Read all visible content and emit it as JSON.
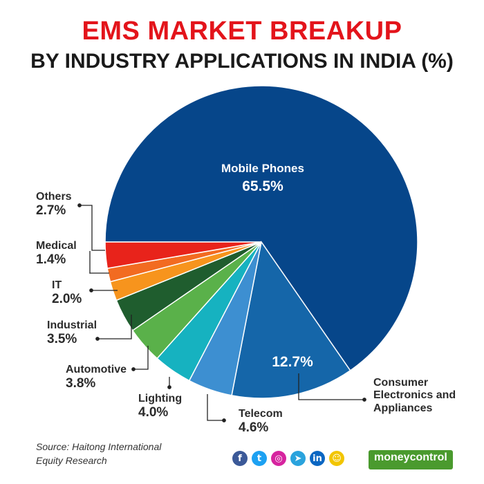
{
  "header": {
    "title": "EMS MARKET BREAKUP",
    "subtitle": "BY INDUSTRY APPLICATIONS IN INDIA (%)"
  },
  "chart_data": {
    "type": "pie",
    "title": "EMS MARKET BREAKUP",
    "subtitle": "BY INDUSTRY APPLICATIONS IN INDIA (%)",
    "slices": [
      {
        "name": "Mobile Phones",
        "value": 65.5,
        "value_label": "65.5%",
        "color": "#06468a"
      },
      {
        "name": "Consumer Electronics and Appliances",
        "value": 12.7,
        "value_label": "12.7%",
        "color": "#1566a9"
      },
      {
        "name": "Telecom",
        "value": 4.6,
        "value_label": "4.6%",
        "color": "#3d8fd1"
      },
      {
        "name": "Lighting",
        "value": 4.0,
        "value_label": "4.0%",
        "color": "#16b2c0"
      },
      {
        "name": "Automotive",
        "value": 3.8,
        "value_label": "3.8%",
        "color": "#5ab14a"
      },
      {
        "name": "Industrial",
        "value": 3.5,
        "value_label": "3.5%",
        "color": "#1f5d2e"
      },
      {
        "name": "IT",
        "value": 2.0,
        "value_label": "2.0%",
        "color": "#f7941d"
      },
      {
        "name": "Medical",
        "value": 1.4,
        "value_label": "1.4%",
        "color": "#f26b21"
      },
      {
        "name": "Others",
        "value": 2.7,
        "value_label": "2.7%",
        "color": "#e8231b"
      }
    ]
  },
  "labels": {
    "mobile_name": "Mobile Phones",
    "mobile_val": "65.5%",
    "consumer_val": "12.7%",
    "consumer_name_1": "Consumer",
    "consumer_name_2": "Electronics and",
    "consumer_name_3": "Appliances",
    "telecom_name": "Telecom",
    "telecom_val": "4.6%",
    "lighting_name": "Lighting",
    "lighting_val": "4.0%",
    "automotive_name": "Automotive",
    "automotive_val": "3.8%",
    "industrial_name": "Industrial",
    "industrial_val": "3.5%",
    "it_name": "IT",
    "it_val": "2.0%",
    "medical_name": "Medical",
    "medical_val": "1.4%",
    "others_name": "Others",
    "others_val": "2.7%"
  },
  "footer": {
    "source_line1": "Source: Haitong International",
    "source_line2": "Equity Research",
    "brand": "moneycontrol",
    "social_icons": [
      "facebook-icon",
      "twitter-icon",
      "instagram-icon",
      "telegram-icon",
      "linkedin-icon",
      "snapchat-icon"
    ],
    "social_colors": [
      "#3b5998",
      "#1da1f2",
      "#d6249f",
      "#2aa3dd",
      "#0a66c2",
      "#f2c500"
    ],
    "social_glyphs": [
      "f",
      "t",
      "◎",
      "➤",
      "in",
      "☺"
    ]
  }
}
